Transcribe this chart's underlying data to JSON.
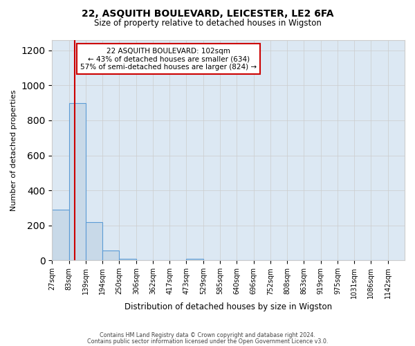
{
  "title_line1": "22, ASQUITH BOULEVARD, LEICESTER, LE2 6FA",
  "title_line2": "Size of property relative to detached houses in Wigston",
  "xlabel": "Distribution of detached houses by size in Wigston",
  "ylabel": "Number of detached properties",
  "bin_labels": [
    "27sqm",
    "83sqm",
    "139sqm",
    "194sqm",
    "250sqm",
    "306sqm",
    "362sqm",
    "417sqm",
    "473sqm",
    "529sqm",
    "585sqm",
    "640sqm",
    "696sqm",
    "752sqm",
    "808sqm",
    "863sqm",
    "919sqm",
    "975sqm",
    "1031sqm",
    "1086sqm",
    "1142sqm"
  ],
  "bar_values": [
    290,
    900,
    220,
    55,
    10,
    0,
    0,
    0,
    10,
    0,
    0,
    0,
    0,
    0,
    0,
    0,
    0,
    0,
    0,
    0
  ],
  "bar_color": "#c8d9e8",
  "bar_edge_color": "#5b9bd5",
  "ylim": [
    0,
    1260
  ],
  "yticks": [
    0,
    200,
    400,
    600,
    800,
    1000,
    1200
  ],
  "property_value": 102,
  "vline_color": "#cc0000",
  "annotation_title": "22 ASQUITH BOULEVARD: 102sqm",
  "annotation_line2": "← 43% of detached houses are smaller (634)",
  "annotation_line3": "57% of semi-detached houses are larger (824) →",
  "annotation_box_color": "#ffffff",
  "annotation_box_edge_color": "#cc0000",
  "footer_line1": "Contains HM Land Registry data © Crown copyright and database right 2024.",
  "footer_line2": "Contains public sector information licensed under the Open Government Licence v3.0.",
  "background_color": "#ffffff",
  "grid_color": "#cccccc",
  "bin_edges": [
    27,
    83,
    139,
    194,
    250,
    306,
    362,
    417,
    473,
    529,
    585,
    640,
    696,
    752,
    808,
    863,
    919,
    975,
    1031,
    1086,
    1142
  ]
}
